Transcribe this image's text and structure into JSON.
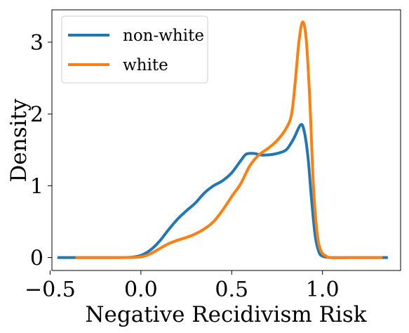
{
  "chart_data": {
    "type": "line",
    "title": "",
    "xlabel": "Negative Recidivism Risk",
    "ylabel": "Density",
    "xlim": [
      -0.49,
      1.43
    ],
    "ylim": [
      -0.18,
      3.45
    ],
    "xticks": [
      -0.5,
      0.0,
      0.5,
      1.0
    ],
    "xtick_labels": [
      "−0.5",
      "0.0",
      "0.5",
      "1.0"
    ],
    "yticks": [
      0,
      1,
      2,
      3
    ],
    "ytick_labels": [
      "0",
      "1",
      "2",
      "3"
    ],
    "grid": false,
    "legend_position": "top-left",
    "series": [
      {
        "name": "non-white",
        "color": "#1f77b4",
        "points": [
          [
            -0.46,
            0
          ],
          [
            -0.3,
            0
          ],
          [
            -0.15,
            0
          ],
          [
            -0.05,
            0.005
          ],
          [
            0,
            0.03
          ],
          [
            0.05,
            0.1
          ],
          [
            0.1,
            0.22
          ],
          [
            0.15,
            0.38
          ],
          [
            0.2,
            0.53
          ],
          [
            0.25,
            0.65
          ],
          [
            0.3,
            0.76
          ],
          [
            0.35,
            0.9
          ],
          [
            0.4,
            1.0
          ],
          [
            0.45,
            1.07
          ],
          [
            0.5,
            1.18
          ],
          [
            0.55,
            1.35
          ],
          [
            0.58,
            1.44
          ],
          [
            0.62,
            1.45
          ],
          [
            0.66,
            1.43
          ],
          [
            0.7,
            1.43
          ],
          [
            0.75,
            1.45
          ],
          [
            0.8,
            1.5
          ],
          [
            0.84,
            1.65
          ],
          [
            0.88,
            1.85
          ],
          [
            0.9,
            1.75
          ],
          [
            0.92,
            1.4
          ],
          [
            0.94,
            0.8
          ],
          [
            0.96,
            0.3
          ],
          [
            0.98,
            0.08
          ],
          [
            1.0,
            0.02
          ],
          [
            1.05,
            0
          ],
          [
            1.2,
            0
          ],
          [
            1.36,
            0
          ]
        ]
      },
      {
        "name": "white",
        "color": "#ff7f0e",
        "points": [
          [
            -0.36,
            0
          ],
          [
            -0.2,
            0
          ],
          [
            -0.1,
            0
          ],
          [
            0,
            0.01
          ],
          [
            0.05,
            0.05
          ],
          [
            0.1,
            0.12
          ],
          [
            0.15,
            0.19
          ],
          [
            0.2,
            0.24
          ],
          [
            0.25,
            0.28
          ],
          [
            0.3,
            0.33
          ],
          [
            0.35,
            0.4
          ],
          [
            0.4,
            0.5
          ],
          [
            0.45,
            0.66
          ],
          [
            0.5,
            0.85
          ],
          [
            0.55,
            1.03
          ],
          [
            0.6,
            1.28
          ],
          [
            0.65,
            1.43
          ],
          [
            0.7,
            1.52
          ],
          [
            0.75,
            1.63
          ],
          [
            0.8,
            1.8
          ],
          [
            0.83,
            2.0
          ],
          [
            0.85,
            2.45
          ],
          [
            0.87,
            3.0
          ],
          [
            0.89,
            3.28
          ],
          [
            0.91,
            3.05
          ],
          [
            0.93,
            2.2
          ],
          [
            0.95,
            1.0
          ],
          [
            0.97,
            0.35
          ],
          [
            0.99,
            0.1
          ],
          [
            1.02,
            0.02
          ],
          [
            1.05,
            0
          ],
          [
            1.2,
            0
          ],
          [
            1.33,
            0
          ]
        ]
      }
    ]
  }
}
